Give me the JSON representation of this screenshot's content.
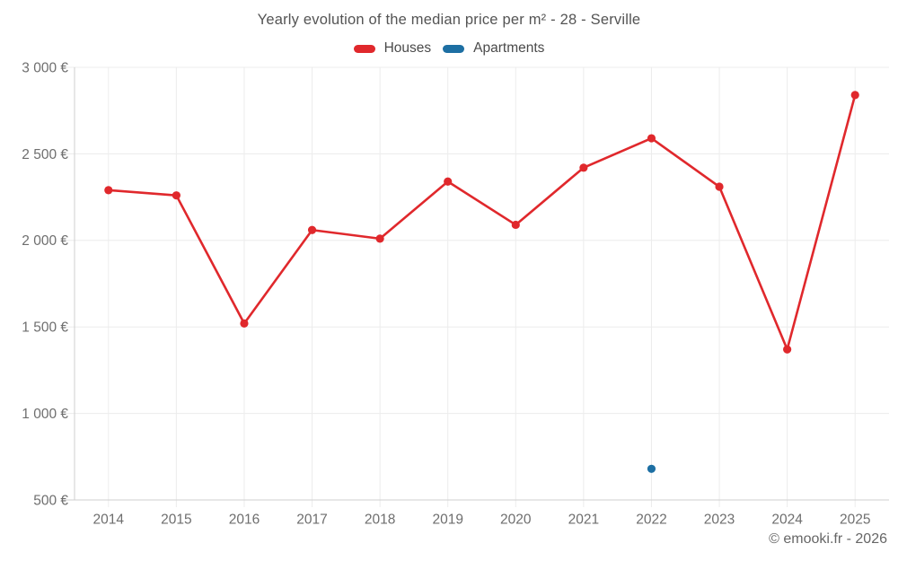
{
  "chart": {
    "title": "Yearly evolution of the median price per m² - 28 - Serville"
  },
  "footer": {
    "copyright": "© emooki.fr - 2026"
  },
  "chart_data": {
    "type": "line",
    "title": "Yearly evolution of the median price per m² - 28 - Serville",
    "categories": [
      "2014",
      "2015",
      "2016",
      "2017",
      "2018",
      "2019",
      "2020",
      "2021",
      "2022",
      "2023",
      "2024",
      "2025"
    ],
    "series": [
      {
        "name": "Houses",
        "color": "#e0282c",
        "values": [
          2290,
          2260,
          1520,
          2060,
          2010,
          2340,
          2090,
          2420,
          2590,
          2310,
          1370,
          2840
        ]
      },
      {
        "name": "Apartments",
        "color": "#1d6fa3",
        "values": [
          null,
          null,
          null,
          null,
          null,
          null,
          null,
          null,
          680,
          null,
          null,
          null
        ]
      }
    ],
    "xlabel": "",
    "ylabel": "",
    "ylim": [
      500,
      3000
    ],
    "y_ticks": [
      {
        "value": 500,
        "label": "500 €"
      },
      {
        "value": 1000,
        "label": "1 000 €"
      },
      {
        "value": 1500,
        "label": "1 500 €"
      },
      {
        "value": 2000,
        "label": "2 000 €"
      },
      {
        "value": 2500,
        "label": "2 500 €"
      },
      {
        "value": 3000,
        "label": "3 000 €"
      }
    ],
    "grid": true,
    "legend_position": "top",
    "axis_color": "#cfcfcf",
    "grid_color": "#ececec"
  }
}
